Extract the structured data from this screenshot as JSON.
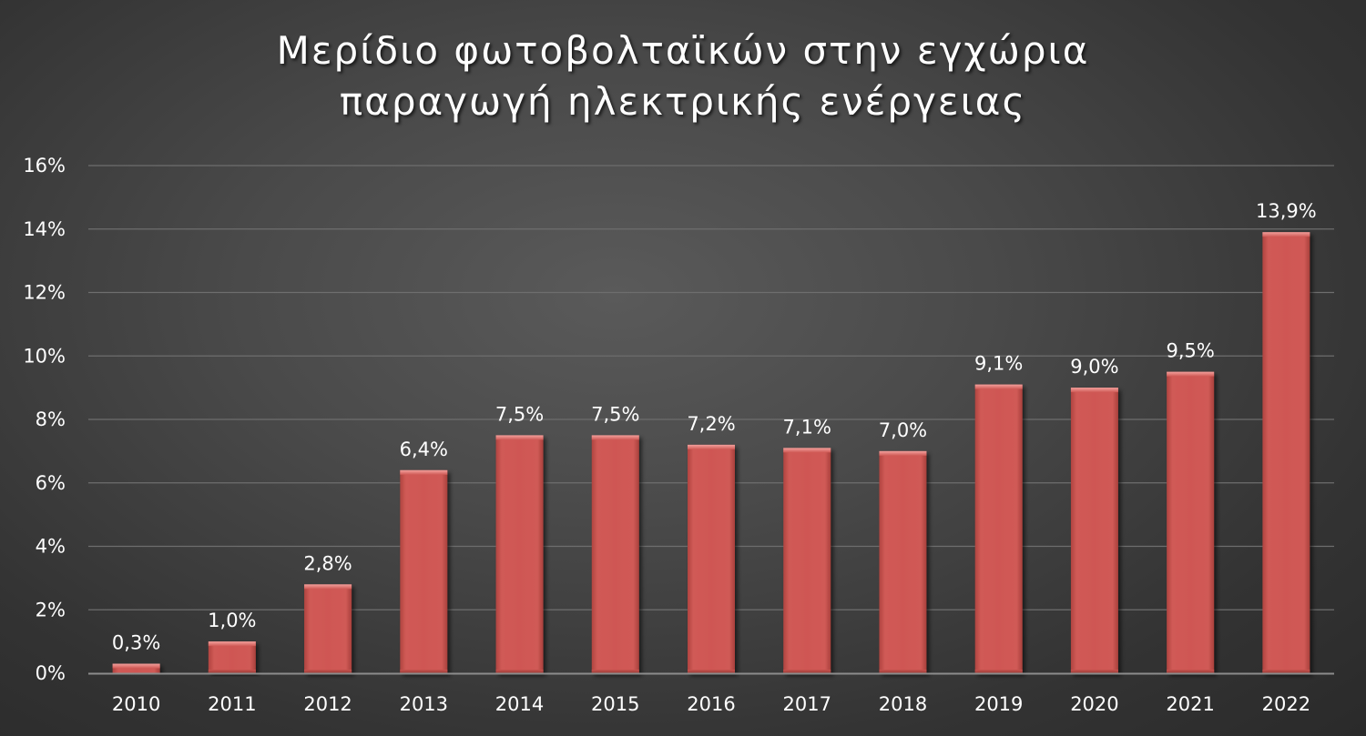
{
  "chart_data": {
    "type": "bar",
    "title_lines": [
      "Μερίδιο φωτοβολταϊκών στην εγχώρια",
      "παραγωγή ηλεκτρικής ενέργειας"
    ],
    "categories": [
      "2010",
      "2011",
      "2012",
      "2013",
      "2014",
      "2015",
      "2016",
      "2017",
      "2018",
      "2019",
      "2020",
      "2021",
      "2022"
    ],
    "values": [
      0.3,
      1.0,
      2.8,
      6.4,
      7.5,
      7.5,
      7.2,
      7.1,
      7.0,
      9.1,
      9.0,
      9.5,
      13.9
    ],
    "data_labels": [
      "0,3%",
      "1,0%",
      "2,8%",
      "6,4%",
      "7,5%",
      "7,5%",
      "7,2%",
      "7,1%",
      "7,0%",
      "9,1%",
      "9,0%",
      "9,5%",
      "13,9%"
    ],
    "y_ticks": [
      0,
      2,
      4,
      6,
      8,
      10,
      12,
      14,
      16
    ],
    "y_tick_labels": [
      "0%",
      "2%",
      "4%",
      "6%",
      "8%",
      "10%",
      "12%",
      "14%",
      "16%"
    ],
    "ylim": [
      0,
      16
    ],
    "grid": true,
    "legend": "none",
    "bar_color": "#c0504d",
    "background_color": "#3f3f3f"
  }
}
